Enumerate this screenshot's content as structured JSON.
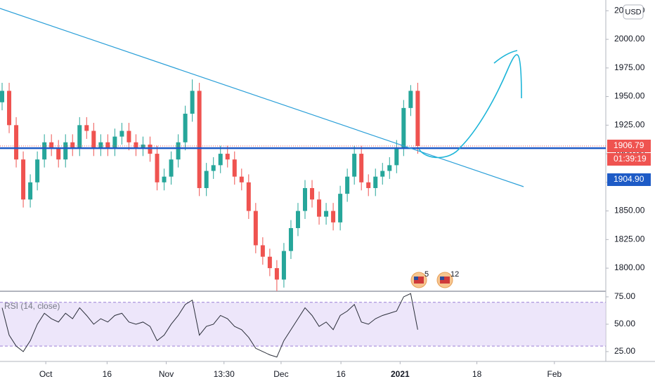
{
  "chart_data": [
    {
      "type": "candlestick",
      "x": [
        0,
        1,
        2,
        3,
        4,
        5,
        6,
        7,
        8,
        9,
        10,
        11,
        12,
        13,
        14,
        15,
        16,
        17,
        18,
        19,
        20,
        21,
        22,
        23,
        24,
        25,
        26,
        27,
        28,
        29,
        30,
        31,
        32,
        33,
        34,
        35,
        36,
        37,
        38,
        39,
        40,
        41,
        42,
        43,
        44,
        45,
        46,
        47,
        48,
        49,
        50,
        51,
        52,
        53,
        54,
        55,
        56,
        57,
        58,
        59
      ],
      "open": [
        1945,
        1955,
        1925,
        1895,
        1860,
        1875,
        1895,
        1910,
        1905,
        1895,
        1910,
        1905,
        1925,
        1920,
        1905,
        1910,
        1905,
        1915,
        1920,
        1910,
        1905,
        1908,
        1900,
        1875,
        1880,
        1895,
        1910,
        1935,
        1955,
        1870,
        1885,
        1890,
        1900,
        1895,
        1880,
        1875,
        1850,
        1820,
        1810,
        1800,
        1790,
        1815,
        1835,
        1850,
        1870,
        1860,
        1845,
        1850,
        1840,
        1865,
        1880,
        1900,
        1875,
        1870,
        1880,
        1885,
        1890,
        1905,
        1940,
        1955
      ],
      "high": [
        1962,
        1962,
        1932,
        1902,
        1882,
        1902,
        1917,
        1917,
        1912,
        1917,
        1917,
        1932,
        1932,
        1927,
        1917,
        1917,
        1922,
        1927,
        1927,
        1917,
        1915,
        1915,
        1907,
        1887,
        1902,
        1917,
        1942,
        1965,
        1962,
        1892,
        1897,
        1907,
        1907,
        1902,
        1887,
        1882,
        1857,
        1827,
        1817,
        1807,
        1822,
        1842,
        1857,
        1877,
        1877,
        1867,
        1857,
        1857,
        1872,
        1887,
        1907,
        1907,
        1882,
        1887,
        1892,
        1897,
        1912,
        1947,
        1960,
        1962
      ],
      "low": [
        1938,
        1918,
        1888,
        1853,
        1853,
        1868,
        1888,
        1898,
        1888,
        1888,
        1898,
        1898,
        1913,
        1898,
        1898,
        1898,
        1898,
        1908,
        1903,
        1898,
        1898,
        1893,
        1868,
        1868,
        1873,
        1888,
        1903,
        1928,
        1863,
        1863,
        1878,
        1883,
        1888,
        1873,
        1868,
        1843,
        1813,
        1803,
        1793,
        1780,
        1783,
        1808,
        1828,
        1843,
        1853,
        1838,
        1838,
        1833,
        1833,
        1858,
        1873,
        1868,
        1863,
        1863,
        1873,
        1878,
        1883,
        1898,
        1933,
        1900
      ],
      "close": [
        1955,
        1925,
        1895,
        1860,
        1875,
        1895,
        1910,
        1905,
        1895,
        1910,
        1905,
        1925,
        1920,
        1905,
        1910,
        1905,
        1915,
        1920,
        1910,
        1905,
        1908,
        1900,
        1875,
        1880,
        1895,
        1910,
        1935,
        1955,
        1870,
        1885,
        1890,
        1900,
        1895,
        1880,
        1875,
        1850,
        1820,
        1810,
        1800,
        1790,
        1815,
        1835,
        1850,
        1870,
        1860,
        1845,
        1850,
        1840,
        1865,
        1880,
        1900,
        1875,
        1870,
        1880,
        1885,
        1890,
        1905,
        1940,
        1955,
        1906.79
      ],
      "up_color": "#26a69a",
      "down_color": "#ef5350",
      "xlim": [
        -0.3,
        85.7
      ],
      "xticks": [
        {
          "value": 6.2,
          "label": "Oct"
        },
        {
          "value": 14.9,
          "label": "16"
        },
        {
          "value": 23.3,
          "label": "Nov"
        },
        {
          "value": 31.5,
          "label": "13:30"
        },
        {
          "value": 39.6,
          "label": "Dec"
        },
        {
          "value": 48.1,
          "label": "16"
        },
        {
          "value": 56.5,
          "label": "2021"
        },
        {
          "value": 67.4,
          "label": "18"
        },
        {
          "value": 78.4,
          "label": "Feb"
        }
      ],
      "ylim": [
        1779.8,
        2034.4
      ],
      "yticks": [
        {
          "value": 1800,
          "label": "1800.00"
        },
        {
          "value": 1825,
          "label": "1825.00"
        },
        {
          "value": 1850,
          "label": "1850.00"
        },
        {
          "value": 1875,
          "label": "1875.00"
        },
        {
          "value": 1900,
          "label": "1900.00"
        },
        {
          "value": 1925,
          "label": "1925.00"
        },
        {
          "value": 1950,
          "label": "1950.00"
        },
        {
          "value": 1975,
          "label": "1975.00"
        },
        {
          "value": 2000,
          "label": "2000.00"
        },
        {
          "value": 2025,
          "label": "2025.00"
        }
      ],
      "currency": "USD",
      "last_price": 1906.79,
      "countdown": "01:39:19",
      "level": {
        "value": 1904.9,
        "label": "1904.90"
      },
      "events": [
        5,
        12
      ]
    },
    {
      "type": "line",
      "title": "RSI (14, close)",
      "x": [
        0,
        1,
        2,
        3,
        4,
        5,
        6,
        7,
        8,
        9,
        10,
        11,
        12,
        13,
        14,
        15,
        16,
        17,
        18,
        19,
        20,
        21,
        22,
        23,
        24,
        25,
        26,
        27,
        28,
        29,
        30,
        31,
        32,
        33,
        34,
        35,
        36,
        37,
        38,
        39,
        40,
        41,
        42,
        43,
        44,
        45,
        46,
        47,
        48,
        49,
        50,
        51,
        52,
        53,
        54,
        55,
        56,
        57,
        58,
        59
      ],
      "values": [
        65,
        40,
        30,
        25,
        35,
        50,
        60,
        55,
        52,
        60,
        55,
        65,
        58,
        50,
        55,
        52,
        58,
        60,
        52,
        50,
        52,
        48,
        35,
        40,
        50,
        58,
        68,
        72,
        40,
        48,
        50,
        58,
        55,
        48,
        45,
        38,
        28,
        25,
        22,
        20,
        35,
        45,
        55,
        65,
        58,
        48,
        52,
        45,
        58,
        62,
        68,
        52,
        50,
        55,
        58,
        60,
        62,
        75,
        78,
        45
      ],
      "color": "#2a2e39",
      "band": [
        30,
        70
      ],
      "ylim": [
        16,
        80.1
      ],
      "yticks": [
        {
          "value": 25,
          "label": "25.00"
        },
        {
          "value": 50,
          "label": "50.00"
        },
        {
          "value": 75,
          "label": "75.00"
        }
      ]
    }
  ]
}
